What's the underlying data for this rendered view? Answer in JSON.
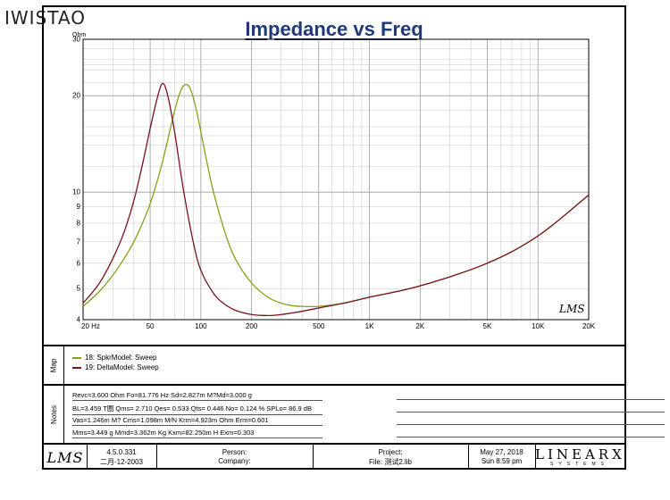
{
  "brand": "IWISTAO",
  "colors": {
    "series1": "#8a9e1a",
    "series2": "#7a1020",
    "title": "#1f3a7a",
    "grid": "#c4c4c4"
  },
  "chart_data": {
    "type": "line",
    "title": "Impedance vs Freq",
    "ylabel": "Ohm",
    "xscale": "log",
    "yscale": "log",
    "xlim": [
      20,
      20000
    ],
    "ylim": [
      4,
      30
    ],
    "x_ticks": [
      {
        "value": 20,
        "label": "20 Hz"
      },
      {
        "value": 50,
        "label": "50"
      },
      {
        "value": 100,
        "label": "100"
      },
      {
        "value": 200,
        "label": "200"
      },
      {
        "value": 500,
        "label": "500"
      },
      {
        "value": 1000,
        "label": "1K"
      },
      {
        "value": 2000,
        "label": "2K"
      },
      {
        "value": 5000,
        "label": "5K"
      },
      {
        "value": 10000,
        "label": "10K"
      },
      {
        "value": 20000,
        "label": "20K"
      }
    ],
    "y_ticks": [
      {
        "value": 30,
        "label": "30"
      },
      {
        "value": 20,
        "label": "20"
      },
      {
        "value": 10,
        "label": "10"
      },
      {
        "value": 9,
        "label": "9"
      },
      {
        "value": 8,
        "label": "8"
      },
      {
        "value": 7,
        "label": "7"
      },
      {
        "value": 6,
        "label": "6"
      },
      {
        "value": 5,
        "label": "5"
      },
      {
        "value": 4,
        "label": "4"
      }
    ],
    "series": [
      {
        "name": "18: SpkrModel: Sweep",
        "x": [
          20,
          25,
          30,
          35,
          40,
          45,
          50,
          55,
          60,
          65,
          70,
          75,
          80,
          85,
          90,
          95,
          100,
          110,
          120,
          140,
          160,
          200,
          250,
          300,
          350,
          400,
          500,
          700,
          1000,
          2000,
          5000,
          10000,
          20000
        ],
        "y": [
          4.4,
          4.9,
          5.5,
          6.2,
          7.0,
          8.0,
          9.2,
          10.8,
          12.8,
          15.3,
          18.0,
          20.4,
          21.6,
          21.4,
          19.8,
          17.6,
          15.4,
          12.0,
          9.8,
          7.4,
          6.2,
          5.2,
          4.7,
          4.5,
          4.42,
          4.4,
          4.4,
          4.5,
          4.7,
          5.1,
          6.0,
          7.3,
          9.8
        ]
      },
      {
        "name": "19: DeltaModel: Sweep",
        "x": [
          20,
          25,
          30,
          35,
          40,
          45,
          50,
          55,
          58,
          60,
          62,
          65,
          70,
          75,
          80,
          90,
          100,
          120,
          140,
          160,
          200,
          250,
          300,
          350,
          400,
          500,
          700,
          1000,
          2000,
          5000,
          10000,
          20000
        ],
        "y": [
          4.5,
          5.2,
          6.2,
          7.5,
          9.4,
          12.2,
          15.8,
          19.6,
          21.5,
          21.8,
          21.0,
          19.0,
          15.3,
          12.0,
          9.7,
          7.0,
          5.7,
          4.8,
          4.45,
          4.28,
          4.15,
          4.12,
          4.15,
          4.2,
          4.25,
          4.35,
          4.5,
          4.7,
          5.1,
          6.0,
          7.3,
          9.8
        ]
      }
    ],
    "annotation": "LMS"
  },
  "map": {
    "label": "Map",
    "legend": [
      {
        "text": "18: SpkrModel: Sweep"
      },
      {
        "text": "19: DeltaModel: Sweep"
      }
    ]
  },
  "notes": {
    "label": "Notes",
    "lines": [
      "Revc=3.600 Ohm  Fo=81.776 Hz  Sd=2.827m M?Md=3.000 g",
      "BL=3.459 T圈  Qms= 2.710  Qes= 0.533  Qts= 0.446  No= 0.124 %  SPLo= 86.9 dB",
      "Vas=1.246m M? Cms=1.098m M/N  Krm=4.923m Ohm  Erm=0.601",
      "Mms=3.449 g  Mmd=3.362m Kg  Kxm=82.250m H  Exm=0.303"
    ]
  },
  "footer": {
    "logo": "LMS",
    "version": "4.5.0.331",
    "date_old": "二月-12-2003",
    "person": "Person:",
    "company": "Company:",
    "project": "Project:",
    "file": "File: 测试2.lib",
    "date": "May 27, 2018",
    "time": "Sun  8:59 pm",
    "brand_main": "LINEARX",
    "brand_sub": "SYSTEMS"
  }
}
